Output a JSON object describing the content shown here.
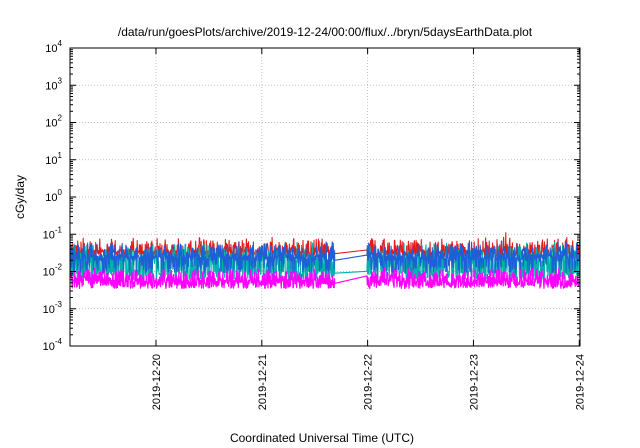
{
  "chart_data": {
    "type": "line",
    "title": "/data/run/goesPlots/archive/2019-12-24/00:00/flux/../bryn/5daysEarthData.plot",
    "xlabel": "Coordinated Universal Time (UTC)",
    "ylabel": "cGy/day",
    "yscale": "log",
    "ylim": [
      0.0001,
      10000
    ],
    "xlim": [
      "2019-12-19T04:30",
      "2019-12-24T00:10"
    ],
    "x_ticks": [
      "2019-12-20",
      "2019-12-21",
      "2019-12-22",
      "2019-12-23",
      "2019-12-24"
    ],
    "y_ticks": [
      {
        "base": "10",
        "exp": "-4",
        "value": 0.0001
      },
      {
        "base": "10",
        "exp": "-3",
        "value": 0.001
      },
      {
        "base": "10",
        "exp": "-2",
        "value": 0.01
      },
      {
        "base": "10",
        "exp": "-1",
        "value": 0.1
      },
      {
        "base": "10",
        "exp": "0",
        "value": 1
      },
      {
        "base": "10",
        "exp": "1",
        "value": 10
      },
      {
        "base": "10",
        "exp": "2",
        "value": 100
      },
      {
        "base": "10",
        "exp": "3",
        "value": 1000
      },
      {
        "base": "10",
        "exp": "4",
        "value": 10000
      }
    ],
    "grid": true,
    "gap": [
      "2019-12-21T16:30",
      "2019-12-21T23:50"
    ],
    "series": [
      {
        "color": "#e41a1c",
        "baseline": 0.03,
        "noise": 0.25,
        "spike": 0.35,
        "dip": 0.0,
        "dip_value": 0.0,
        "gap_from": 0.03,
        "gap_to": 0.032,
        "spikes": [
          {
            "x": "2019-12-20T09:00",
            "value": 0.065
          },
          {
            "x": "2019-12-23T07:20",
            "value": 0.11
          }
        ]
      },
      {
        "color": "#00b2a9",
        "baseline": 0.022,
        "noise": 0.3,
        "spike": 0.3,
        "dip": 0.45,
        "dip_value": 0.008,
        "gap_from": 0.009,
        "gap_to": 0.008,
        "spikes": []
      },
      {
        "color": "#1f5fd6",
        "baseline": 0.024,
        "noise": 0.22,
        "spike": 0.35,
        "dip": 0.2,
        "dip_value": 0.012,
        "gap_from": 0.02,
        "gap_to": 0.019,
        "spikes": [
          {
            "x": "2019-12-19T14:00",
            "value": 0.055
          }
        ]
      },
      {
        "color": "#ff00ff",
        "baseline": 0.0045,
        "noise": 0.25,
        "spike": 0.55,
        "dip": 0.0,
        "dip_value": 0.0,
        "gap_from": 0.0048,
        "gap_to": 0.0045,
        "spikes": []
      }
    ]
  }
}
